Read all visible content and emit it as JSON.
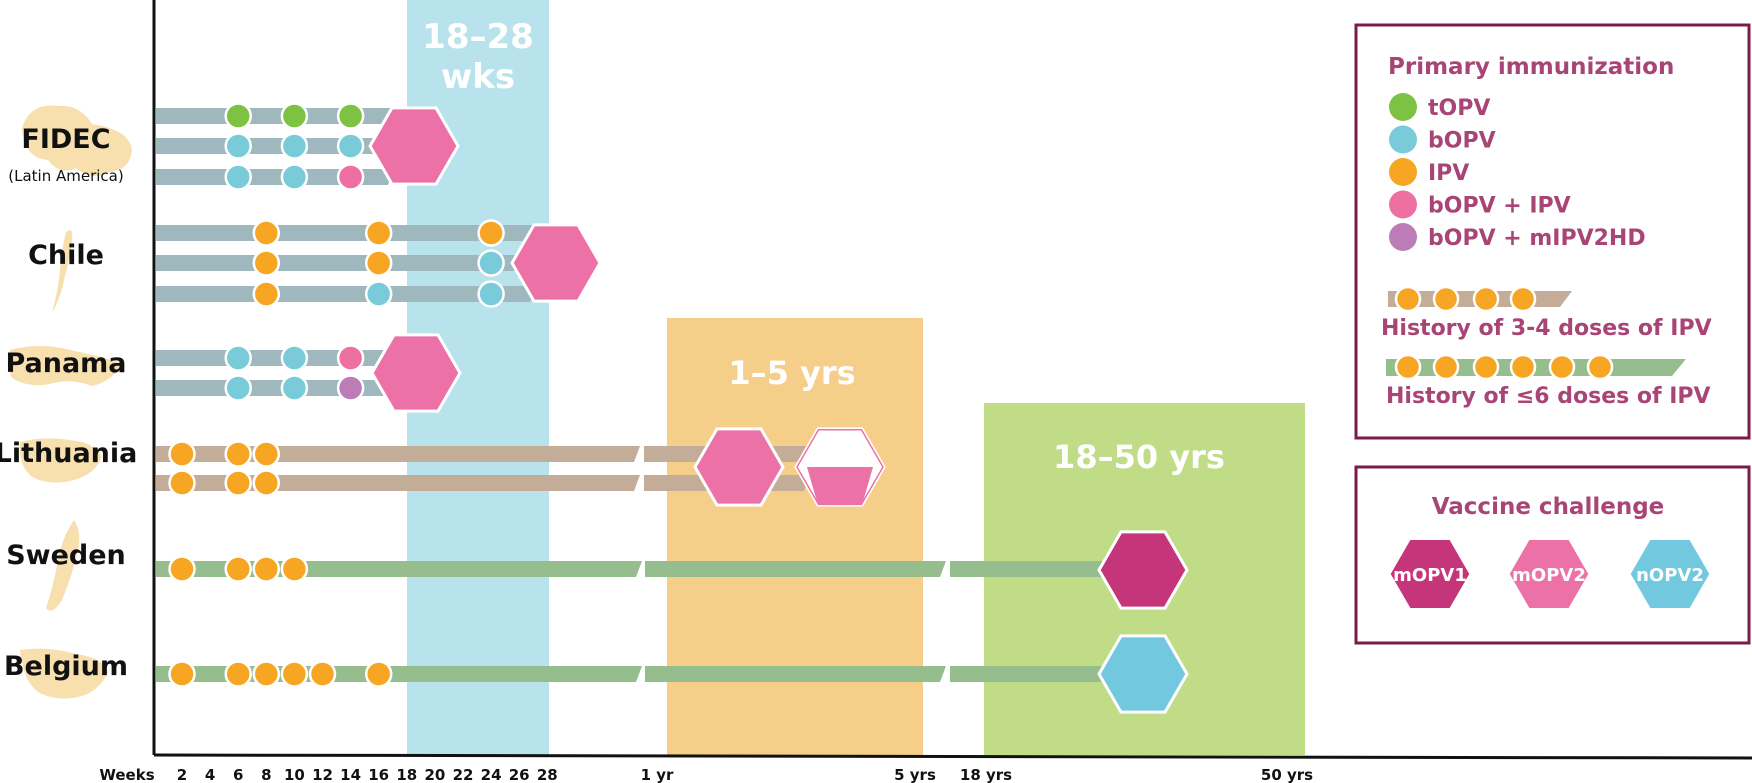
{
  "colors": {
    "tOPV": "#7dc242",
    "bOPV": "#79cbd9",
    "IPV": "#f6a623",
    "bOPV_IPV": "#ee6fa2",
    "bOPV_mIPV2HD": "#bb7cb8",
    "mOPV1": "#c4357a",
    "mOPV2": "#ec71a6",
    "nOPV2": "#72c8de",
    "bar_grey": "#9fb8bd",
    "bar_tan": "#c3ad99",
    "bar_green": "#96bd8e",
    "band_weeks": "#b8e3ed",
    "band_1_5": "#f5ce8a",
    "band_18_50": "#c0dc86",
    "legend_border": "#7d1a4a",
    "legend_text": "#a84576",
    "country_shape": "#f8dfae"
  },
  "countries": [
    {
      "name": "FIDEC",
      "sub": "(Latin America)"
    },
    {
      "name": "Chile",
      "sub": ""
    },
    {
      "name": "Panama",
      "sub": ""
    },
    {
      "name": "Lithuania",
      "sub": ""
    },
    {
      "name": "Sweden",
      "sub": ""
    },
    {
      "name": "Belgium",
      "sub": ""
    }
  ],
  "bands": {
    "weeks": "18–28 wks",
    "years_1_5": "1–5 yrs",
    "years_18_50": "18–50 yrs"
  },
  "axis": {
    "label": "Weeks",
    "week_ticks": [
      "2",
      "4",
      "6",
      "8",
      "10",
      "12",
      "14",
      "16",
      "18",
      "20",
      "22",
      "24",
      "26",
      "28"
    ],
    "year_ticks": [
      "1 yr",
      "5 yrs",
      "18 yrs",
      "50 yrs"
    ]
  },
  "legend": {
    "primary_title": "Primary immunization",
    "items": [
      {
        "key": "tOPV",
        "label": "tOPV"
      },
      {
        "key": "bOPV",
        "label": "bOPV"
      },
      {
        "key": "IPV",
        "label": "IPV"
      },
      {
        "key": "bOPV_IPV",
        "label": "bOPV + IPV"
      },
      {
        "key": "bOPV_mIPV2HD",
        "label": "bOPV + mIPV2HD"
      }
    ],
    "history_3_4": "History of 3-4 doses of IPV",
    "history_6": "History of ≤6 doses of IPV",
    "challenge_title": "Vaccine challenge",
    "challenge_items": [
      {
        "key": "mOPV1",
        "label": "mOPV1"
      },
      {
        "key": "mOPV2",
        "label": "mOPV2"
      },
      {
        "key": "nOPV2",
        "label": "nOPV2"
      }
    ]
  },
  "schedules": [
    {
      "country": "FIDEC",
      "doses": [
        {
          "week": 6,
          "vaccine": "tOPV"
        },
        {
          "week": 10,
          "vaccine": "tOPV"
        },
        {
          "week": 14,
          "vaccine": "tOPV"
        }
      ],
      "challenge": "mOPV2",
      "challenge_week": 18
    },
    {
      "country": "FIDEC",
      "doses": [
        {
          "week": 6,
          "vaccine": "bOPV"
        },
        {
          "week": 10,
          "vaccine": "bOPV"
        },
        {
          "week": 14,
          "vaccine": "bOPV"
        }
      ],
      "challenge": "mOPV2",
      "challenge_week": 18
    },
    {
      "country": "FIDEC",
      "doses": [
        {
          "week": 6,
          "vaccine": "bOPV"
        },
        {
          "week": 10,
          "vaccine": "bOPV"
        },
        {
          "week": 14,
          "vaccine": "bOPV_IPV"
        }
      ],
      "challenge": "mOPV2",
      "challenge_week": 18
    },
    {
      "country": "Chile",
      "doses": [
        {
          "week": 8,
          "vaccine": "IPV"
        },
        {
          "week": 16,
          "vaccine": "IPV"
        },
        {
          "week": 24,
          "vaccine": "IPV"
        }
      ],
      "challenge": "mOPV2",
      "challenge_week": 28
    },
    {
      "country": "Chile",
      "doses": [
        {
          "week": 8,
          "vaccine": "IPV"
        },
        {
          "week": 16,
          "vaccine": "IPV"
        },
        {
          "week": 24,
          "vaccine": "bOPV"
        }
      ],
      "challenge": "mOPV2",
      "challenge_week": 28
    },
    {
      "country": "Chile",
      "doses": [
        {
          "week": 8,
          "vaccine": "IPV"
        },
        {
          "week": 16,
          "vaccine": "bOPV"
        },
        {
          "week": 24,
          "vaccine": "bOPV"
        }
      ],
      "challenge": "mOPV2",
      "challenge_week": 28
    },
    {
      "country": "Panama",
      "doses": [
        {
          "week": 6,
          "vaccine": "bOPV"
        },
        {
          "week": 10,
          "vaccine": "bOPV"
        },
        {
          "week": 14,
          "vaccine": "bOPV_IPV"
        }
      ],
      "challenge": "mOPV2",
      "challenge_week": 18
    },
    {
      "country": "Panama",
      "doses": [
        {
          "week": 6,
          "vaccine": "bOPV"
        },
        {
          "week": 10,
          "vaccine": "bOPV"
        },
        {
          "week": 14,
          "vaccine": "bOPV_mIPV2HD"
        }
      ],
      "challenge": "mOPV2",
      "challenge_week": 18
    },
    {
      "country": "Lithuania",
      "doses": [
        {
          "week": 2,
          "vaccine": "IPV"
        },
        {
          "week": 6,
          "vaccine": "IPV"
        },
        {
          "week": 8,
          "vaccine": "IPV"
        }
      ],
      "challenge": "mOPV2",
      "challenge_age": "1–5 yrs"
    },
    {
      "country": "Lithuania",
      "doses": [
        {
          "week": 2,
          "vaccine": "IPV"
        },
        {
          "week": 6,
          "vaccine": "IPV"
        },
        {
          "week": 8,
          "vaccine": "IPV"
        }
      ],
      "challenge": "mOPV2",
      "challenge_age": "1–5 yrs"
    },
    {
      "country": "Sweden",
      "doses": [
        {
          "week": 2,
          "vaccine": "IPV"
        },
        {
          "week": 6,
          "vaccine": "IPV"
        },
        {
          "week": 8,
          "vaccine": "IPV"
        },
        {
          "week": 10,
          "vaccine": "IPV"
        }
      ],
      "challenge": "mOPV1",
      "challenge_age": "18–50 yrs"
    },
    {
      "country": "Belgium",
      "doses": [
        {
          "week": 2,
          "vaccine": "IPV"
        },
        {
          "week": 6,
          "vaccine": "IPV"
        },
        {
          "week": 8,
          "vaccine": "IPV"
        },
        {
          "week": 10,
          "vaccine": "IPV"
        },
        {
          "week": 12,
          "vaccine": "IPV"
        },
        {
          "week": 16,
          "vaccine": "IPV"
        }
      ],
      "challenge": "nOPV2",
      "challenge_age": "18–50 yrs"
    }
  ]
}
